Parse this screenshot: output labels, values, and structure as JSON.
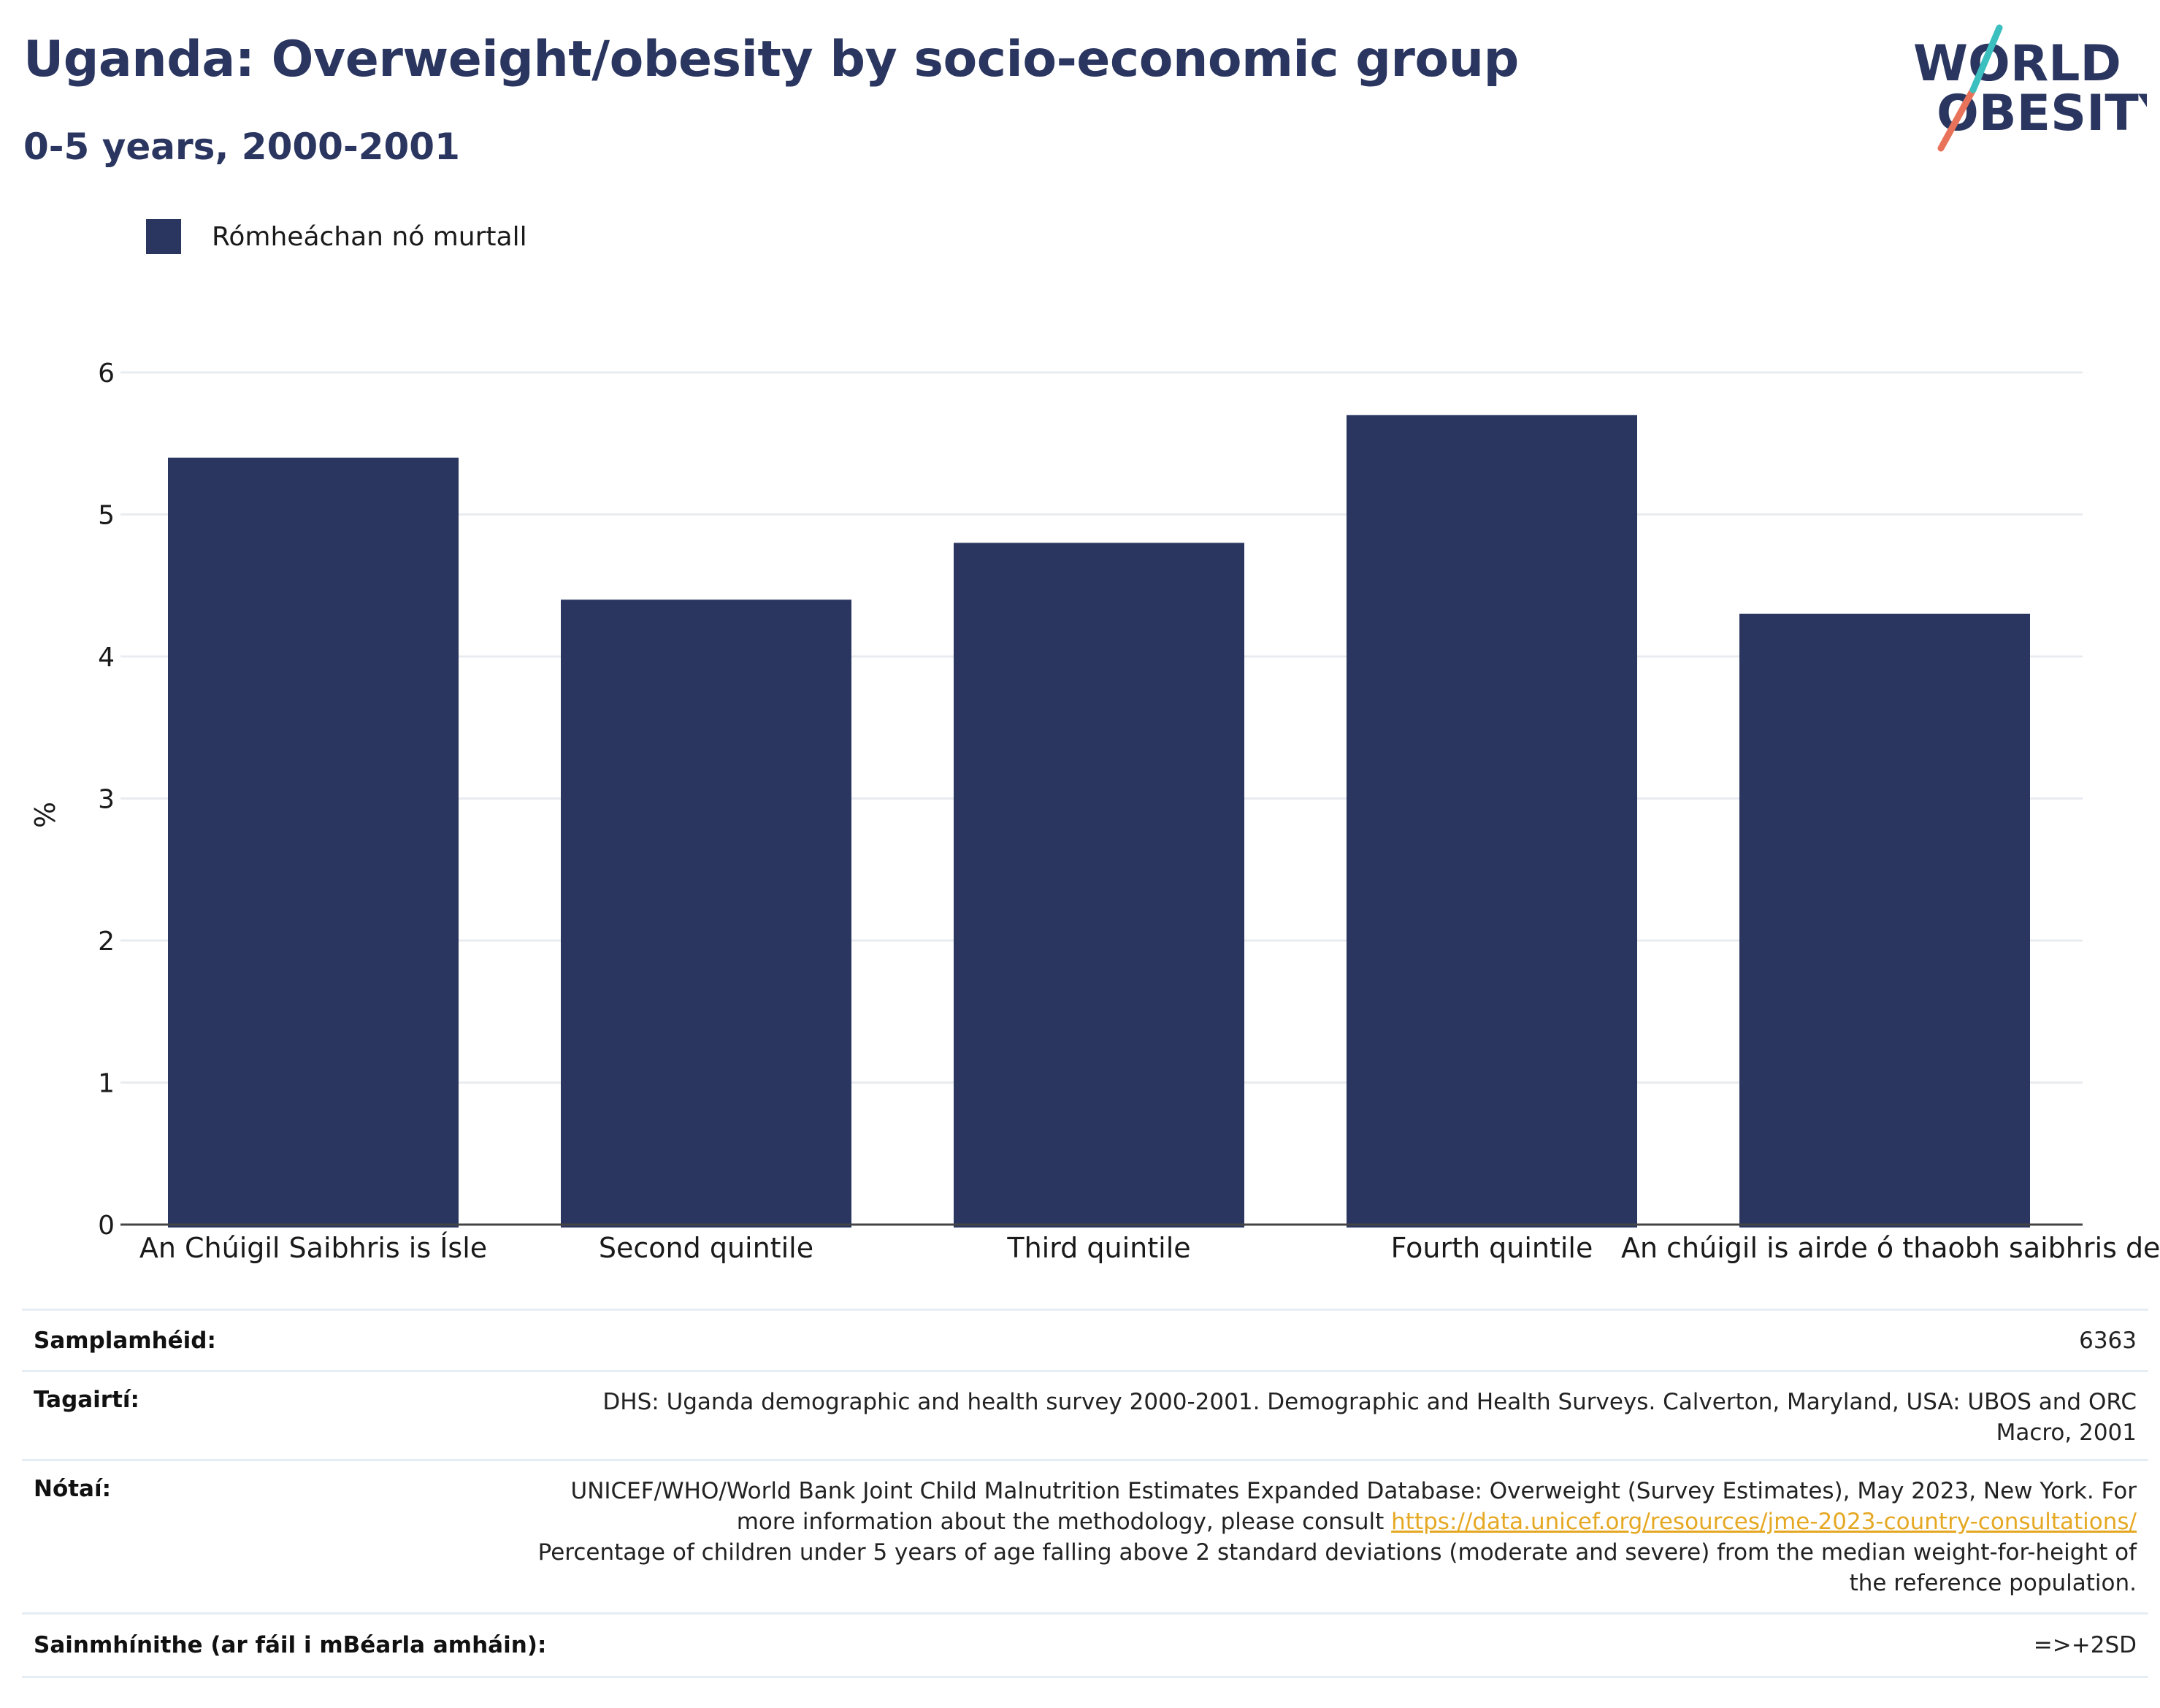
{
  "header": {
    "title": "Uganda: Overweight/obesity by socio-economic group",
    "subtitle": "0-5 years, 2000-2001"
  },
  "logo": {
    "line1": "WORLD",
    "line2": "OBESITY"
  },
  "legend": {
    "label": "Rómheáchan nó murtall"
  },
  "colors": {
    "bar": "#2a3660",
    "accent_teal": "#3bbfbf",
    "accent_coral": "#e8735a",
    "link": "#e5a823"
  },
  "chart_data": {
    "type": "bar",
    "categories": [
      "An Chúigil Saibhris is Ísle",
      "Second quintile",
      "Third quintile",
      "Fourth quintile",
      "An chúigil is airde ó thaobh saibhris de"
    ],
    "series": [
      {
        "name": "Rómheáchan nó murtall",
        "values": [
          5.4,
          4.4,
          4.8,
          5.7,
          4.3
        ]
      }
    ],
    "ylabel": "%",
    "ylim": [
      0,
      6
    ],
    "yticks": [
      0,
      1,
      2,
      3,
      4,
      5,
      6
    ],
    "grid": true,
    "legend_position": "top-left"
  },
  "info": {
    "sample_size_label": "Samplamhéid:",
    "sample_size_value": "6363",
    "references_label": "Tagairtí:",
    "references_value": "DHS: Uganda demographic and health survey 2000-2001. Demographic and Health Surveys. Calverton, Maryland, USA: UBOS and ORC Macro, 2001",
    "notes_label": "Nótaí:",
    "notes_text_1": "UNICEF/WHO/World Bank Joint Child Malnutrition Estimates Expanded Database: Overweight (Survey Estimates), May 2023, New York. For more information about the methodology, please consult",
    "notes_link": "https://data.unicef.org/resources/jme-2023-country-consultations/",
    "notes_text_2": "Percentage of children under 5 years of age falling above 2 standard deviations (moderate and severe) from the median weight-for-height of the reference population.",
    "definitions_label": "Sainmhínithe (ar fáil i mBéarla amháin):",
    "definitions_value": "=>+2SD"
  }
}
